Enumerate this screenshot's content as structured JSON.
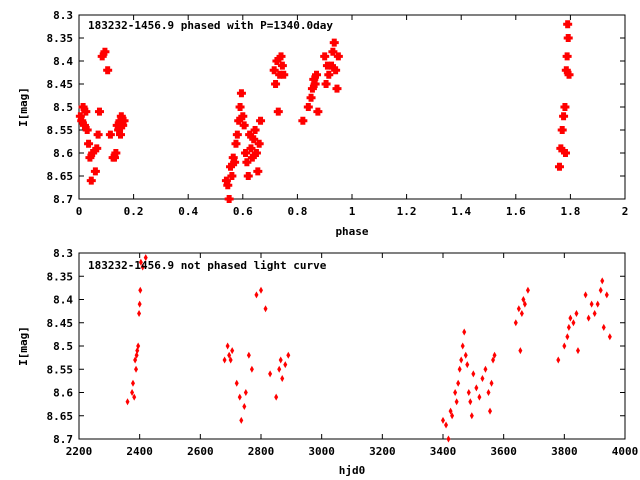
{
  "chart_data": [
    {
      "type": "scatter",
      "title": "183232-1456.9 phased with P=1340.0day",
      "xlabel": "phase",
      "ylabel": "I[mag]",
      "xlim": [
        0,
        2
      ],
      "ylim": [
        8.7,
        8.3
      ],
      "y_axis_inverted": true,
      "xticks": [
        "0",
        "0.2",
        "0.4",
        "0.6",
        "0.8",
        "1",
        "1.2",
        "1.4",
        "1.6",
        "1.8",
        "2"
      ],
      "yticks": [
        "8.3",
        "8.35",
        "8.4",
        "8.45",
        "8.5",
        "8.55",
        "8.6",
        "8.65",
        "8.7"
      ],
      "grid": false,
      "marker_color": "#ff0000",
      "series": [
        {
          "points": [
            [
              0.005,
              8.52
            ],
            [
              0.01,
              8.53
            ],
            [
              0.015,
              8.5
            ],
            [
              0.02,
              8.54
            ],
            [
              0.025,
              8.51
            ],
            [
              0.03,
              8.55
            ],
            [
              0.035,
              8.58
            ],
            [
              0.04,
              8.61
            ],
            [
              0.045,
              8.66
            ],
            [
              0.05,
              8.6
            ],
            [
              0.06,
              8.64
            ],
            [
              0.065,
              8.59
            ],
            [
              0.07,
              8.56
            ],
            [
              0.075,
              8.51
            ],
            [
              0.085,
              8.39
            ],
            [
              0.095,
              8.38
            ],
            [
              0.105,
              8.42
            ],
            [
              0.115,
              8.56
            ],
            [
              0.125,
              8.61
            ],
            [
              0.13,
              8.61
            ],
            [
              0.135,
              8.6
            ],
            [
              0.14,
              8.54
            ],
            [
              0.145,
              8.55
            ],
            [
              0.15,
              8.53
            ],
            [
              0.152,
              8.56
            ],
            [
              0.155,
              8.52
            ],
            [
              0.16,
              8.54
            ],
            [
              0.165,
              8.53
            ],
            [
              0.54,
              8.66
            ],
            [
              0.545,
              8.67
            ],
            [
              0.55,
              8.7
            ],
            [
              0.555,
              8.63
            ],
            [
              0.56,
              8.65
            ],
            [
              0.565,
              8.61
            ],
            [
              0.57,
              8.62
            ],
            [
              0.575,
              8.58
            ],
            [
              0.58,
              8.56
            ],
            [
              0.585,
              8.53
            ],
            [
              0.59,
              8.5
            ],
            [
              0.595,
              8.47
            ],
            [
              0.6,
              8.52
            ],
            [
              0.605,
              8.54
            ],
            [
              0.61,
              8.6
            ],
            [
              0.615,
              8.62
            ],
            [
              0.62,
              8.65
            ],
            [
              0.625,
              8.56
            ],
            [
              0.63,
              8.59
            ],
            [
              0.635,
              8.61
            ],
            [
              0.64,
              8.57
            ],
            [
              0.645,
              8.55
            ],
            [
              0.65,
              8.6
            ],
            [
              0.655,
              8.64
            ],
            [
              0.66,
              8.58
            ],
            [
              0.665,
              8.53
            ],
            [
              0.715,
              8.42
            ],
            [
              0.72,
              8.45
            ],
            [
              0.725,
              8.4
            ],
            [
              0.73,
              8.51
            ],
            [
              0.735,
              8.43
            ],
            [
              0.74,
              8.39
            ],
            [
              0.745,
              8.41
            ],
            [
              0.75,
              8.43
            ],
            [
              0.82,
              8.53
            ],
            [
              0.84,
              8.5
            ],
            [
              0.85,
              8.48
            ],
            [
              0.855,
              8.46
            ],
            [
              0.86,
              8.44
            ],
            [
              0.865,
              8.45
            ],
            [
              0.87,
              8.43
            ],
            [
              0.875,
              8.51
            ],
            [
              0.9,
              8.39
            ],
            [
              0.905,
              8.45
            ],
            [
              0.91,
              8.41
            ],
            [
              0.915,
              8.43
            ],
            [
              0.925,
              8.41
            ],
            [
              0.93,
              8.38
            ],
            [
              0.935,
              8.36
            ],
            [
              0.94,
              8.42
            ],
            [
              0.945,
              8.46
            ],
            [
              0.95,
              8.39
            ],
            [
              1.76,
              8.63
            ],
            [
              1.765,
              8.59
            ],
            [
              1.77,
              8.55
            ],
            [
              1.775,
              8.52
            ],
            [
              1.78,
              8.5
            ],
            [
              1.782,
              8.6
            ],
            [
              1.785,
              8.42
            ],
            [
              1.788,
              8.39
            ],
            [
              1.79,
              8.32
            ],
            [
              1.792,
              8.35
            ],
            [
              1.795,
              8.43
            ]
          ]
        }
      ]
    },
    {
      "type": "scatter",
      "title": "183232-1456.9 not phased light curve",
      "xlabel": "hjd0",
      "ylabel": "I[mag]",
      "xlim": [
        2200,
        4000
      ],
      "ylim": [
        8.7,
        8.3
      ],
      "y_axis_inverted": true,
      "xticks": [
        "2200",
        "2400",
        "2600",
        "2800",
        "3000",
        "3200",
        "3400",
        "3600",
        "3800",
        "4000"
      ],
      "yticks": [
        "8.3",
        "8.35",
        "8.4",
        "8.45",
        "8.5",
        "8.55",
        "8.6",
        "8.65",
        "8.7"
      ],
      "grid": false,
      "marker_color": "#ff0000",
      "series": [
        {
          "points": [
            [
              2360,
              8.62
            ],
            [
              2375,
              8.6
            ],
            [
              2378,
              8.58
            ],
            [
              2382,
              8.61
            ],
            [
              2385,
              8.53
            ],
            [
              2388,
              8.55
            ],
            [
              2390,
              8.52
            ],
            [
              2392,
              8.51
            ],
            [
              2395,
              8.5
            ],
            [
              2398,
              8.43
            ],
            [
              2400,
              8.41
            ],
            [
              2402,
              8.38
            ],
            [
              2404,
              8.32
            ],
            [
              2410,
              8.33
            ],
            [
              2420,
              8.31
            ],
            [
              2680,
              8.53
            ],
            [
              2690,
              8.5
            ],
            [
              2695,
              8.52
            ],
            [
              2700,
              8.53
            ],
            [
              2705,
              8.51
            ],
            [
              2720,
              8.58
            ],
            [
              2730,
              8.61
            ],
            [
              2735,
              8.66
            ],
            [
              2745,
              8.63
            ],
            [
              2750,
              8.6
            ],
            [
              2760,
              8.52
            ],
            [
              2770,
              8.55
            ],
            [
              2785,
              8.39
            ],
            [
              2800,
              8.38
            ],
            [
              2815,
              8.42
            ],
            [
              2830,
              8.56
            ],
            [
              2850,
              8.61
            ],
            [
              2860,
              8.55
            ],
            [
              2865,
              8.53
            ],
            [
              2870,
              8.57
            ],
            [
              2880,
              8.54
            ],
            [
              2890,
              8.52
            ],
            [
              3400,
              8.66
            ],
            [
              3410,
              8.67
            ],
            [
              3418,
              8.7
            ],
            [
              3425,
              8.64
            ],
            [
              3430,
              8.65
            ],
            [
              3440,
              8.6
            ],
            [
              3445,
              8.62
            ],
            [
              3450,
              8.58
            ],
            [
              3455,
              8.55
            ],
            [
              3460,
              8.53
            ],
            [
              3465,
              8.5
            ],
            [
              3470,
              8.47
            ],
            [
              3475,
              8.52
            ],
            [
              3480,
              8.54
            ],
            [
              3485,
              8.6
            ],
            [
              3490,
              8.62
            ],
            [
              3495,
              8.65
            ],
            [
              3500,
              8.56
            ],
            [
              3510,
              8.59
            ],
            [
              3520,
              8.61
            ],
            [
              3530,
              8.57
            ],
            [
              3540,
              8.55
            ],
            [
              3550,
              8.6
            ],
            [
              3555,
              8.64
            ],
            [
              3560,
              8.58
            ],
            [
              3565,
              8.53
            ],
            [
              3570,
              8.52
            ],
            [
              3640,
              8.45
            ],
            [
              3650,
              8.42
            ],
            [
              3655,
              8.51
            ],
            [
              3660,
              8.43
            ],
            [
              3665,
              8.4
            ],
            [
              3670,
              8.41
            ],
            [
              3680,
              8.38
            ],
            [
              3780,
              8.53
            ],
            [
              3800,
              8.5
            ],
            [
              3810,
              8.48
            ],
            [
              3815,
              8.46
            ],
            [
              3820,
              8.44
            ],
            [
              3830,
              8.45
            ],
            [
              3840,
              8.43
            ],
            [
              3845,
              8.51
            ],
            [
              3870,
              8.39
            ],
            [
              3880,
              8.44
            ],
            [
              3890,
              8.41
            ],
            [
              3900,
              8.43
            ],
            [
              3910,
              8.41
            ],
            [
              3920,
              8.38
            ],
            [
              3925,
              8.36
            ],
            [
              3930,
              8.46
            ],
            [
              3940,
              8.39
            ],
            [
              3950,
              8.48
            ]
          ]
        }
      ]
    }
  ]
}
